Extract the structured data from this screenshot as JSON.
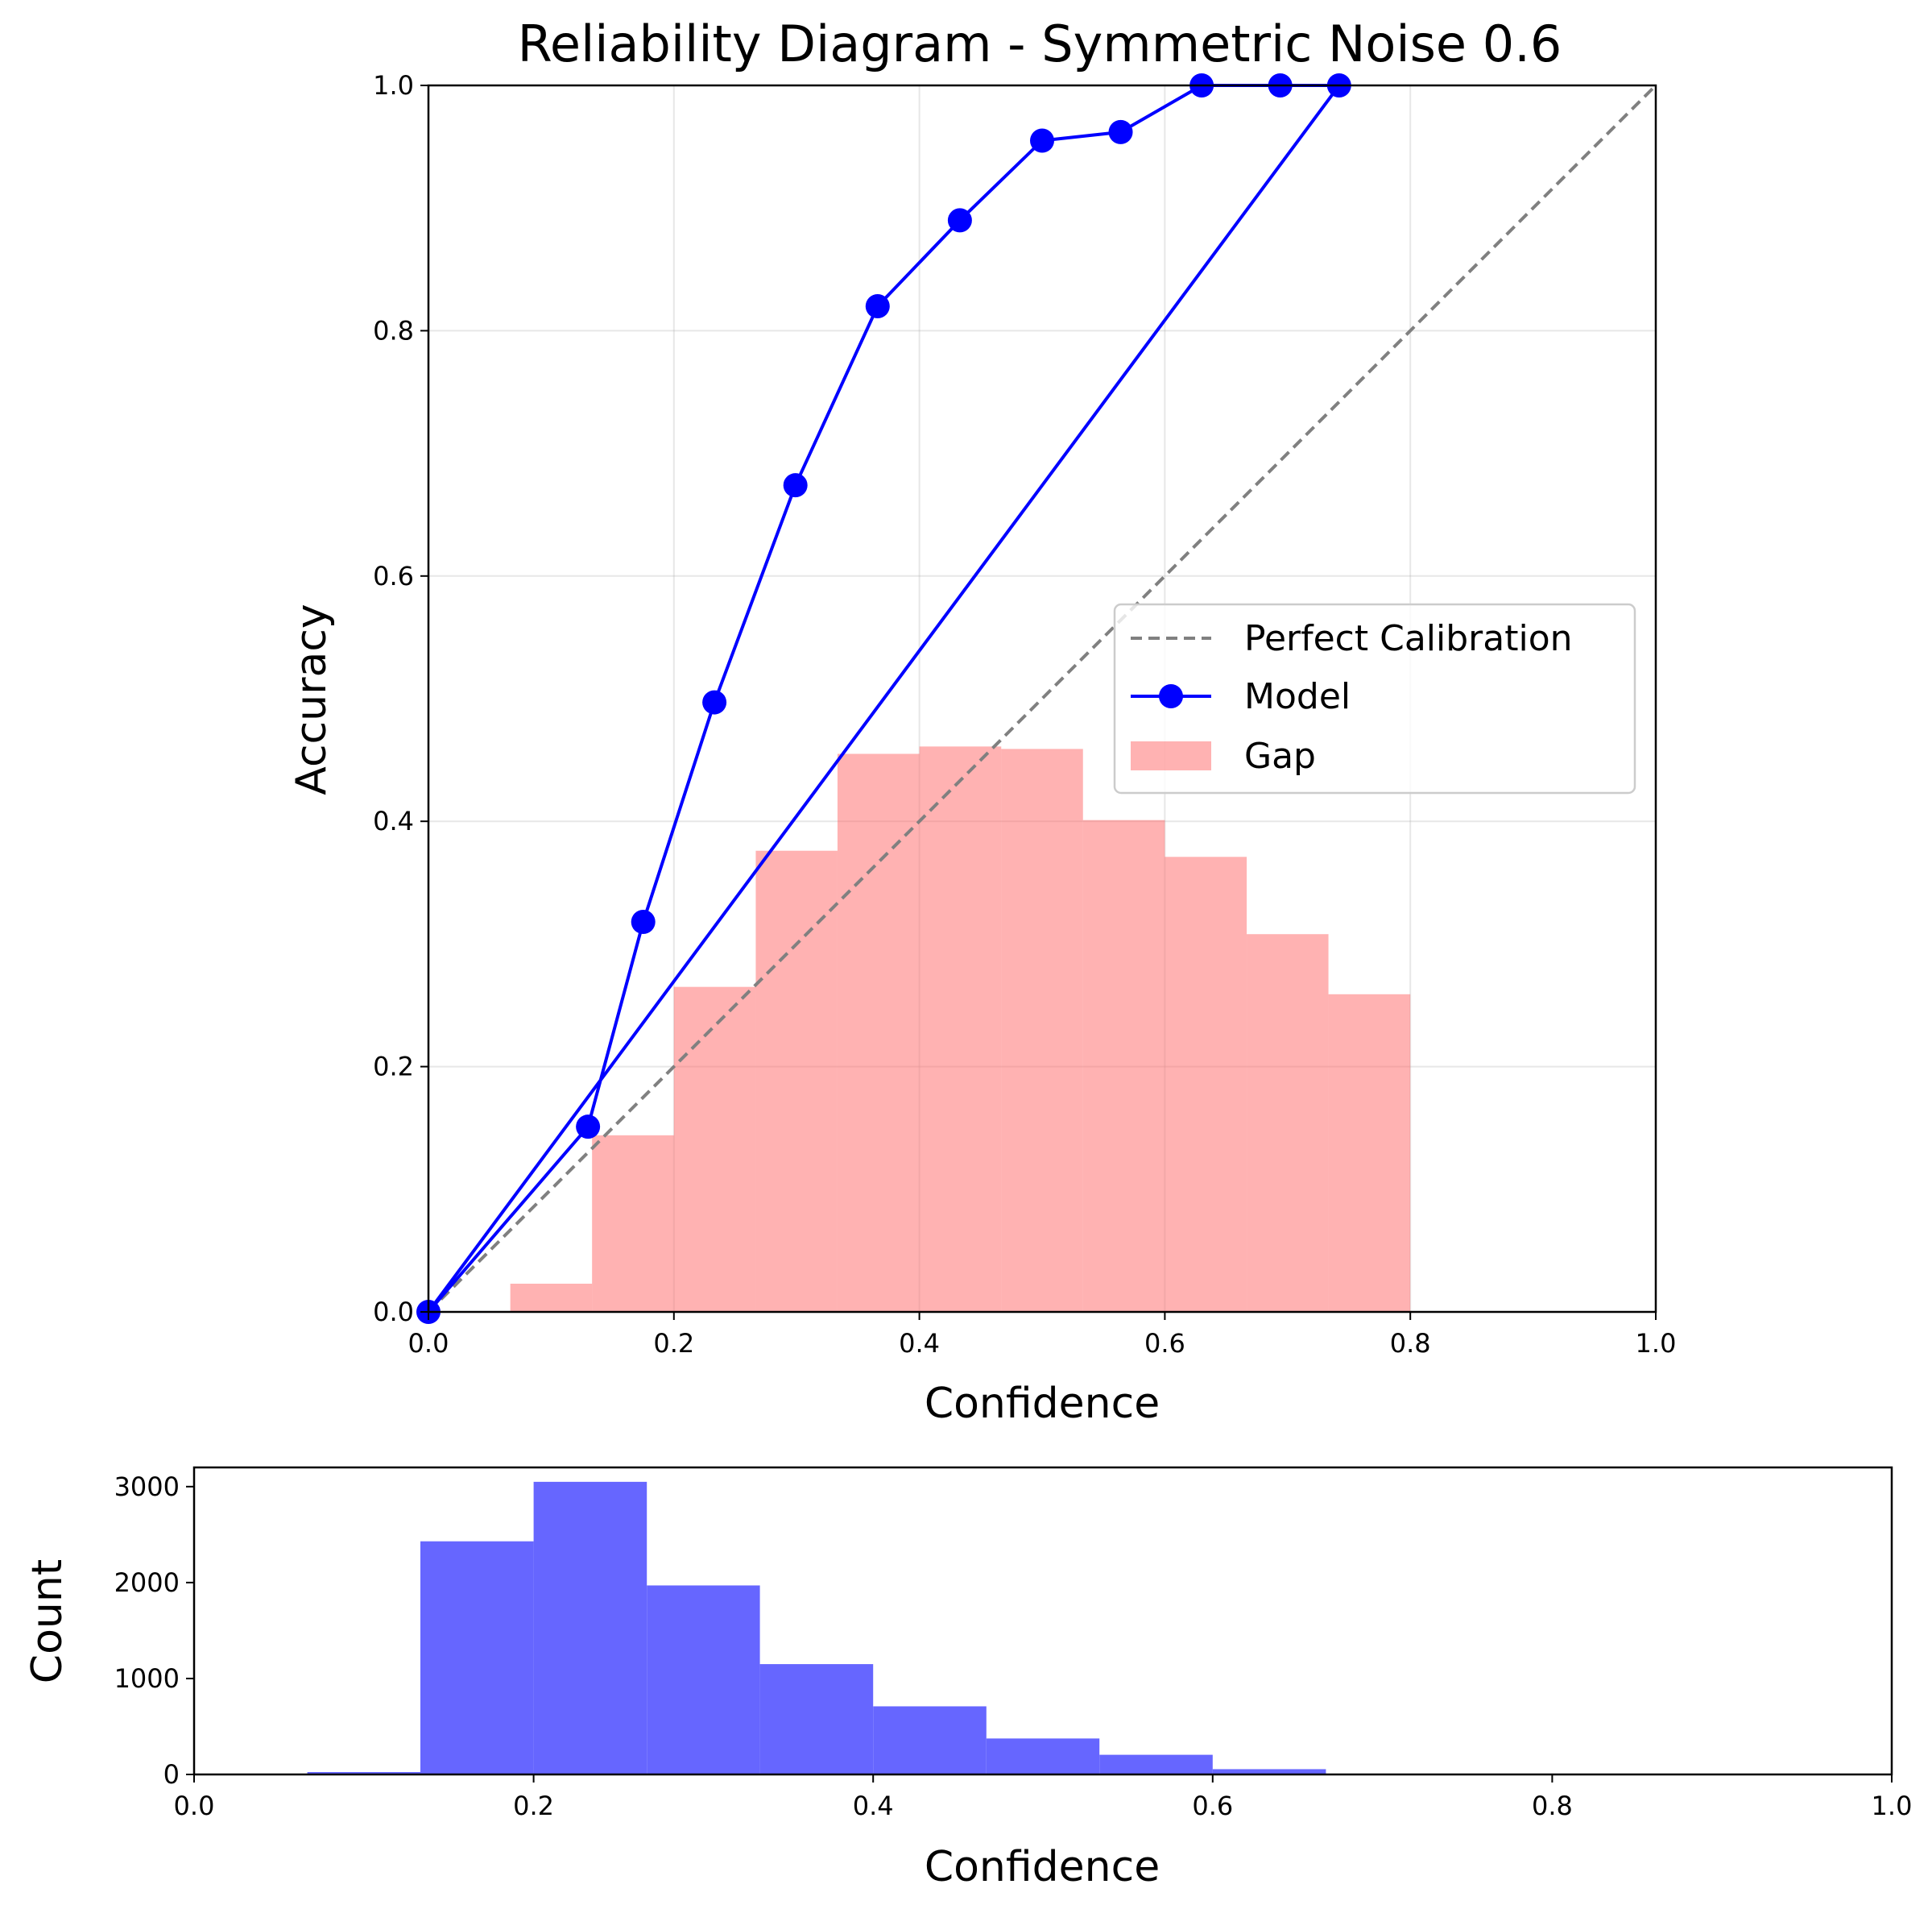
{
  "chart_data": [
    {
      "type": "line",
      "title": "Reliability Diagram - Symmetric Noise 0.6",
      "xlabel": "Confidence",
      "ylabel": "Accuracy",
      "xlim": [
        0,
        1
      ],
      "ylim": [
        0,
        1
      ],
      "xticks": [
        "0.0",
        "0.2",
        "0.4",
        "0.6",
        "0.8",
        "1.0"
      ],
      "yticks": [
        "0.0",
        "0.2",
        "0.4",
        "0.6",
        "0.8",
        "1.0"
      ],
      "grid": true,
      "legend_position": "center-right",
      "legend": [
        "Perfect Calibration",
        "Model",
        "Gap"
      ],
      "perfect_calibration": {
        "name": "Perfect Calibration",
        "x": [
          0,
          1
        ],
        "y": [
          0,
          1
        ],
        "color": "#808080",
        "style": "dashed"
      },
      "model": {
        "name": "Model",
        "color": "#0000ff",
        "points": [
          {
            "x": 0.0,
            "y": 0.0
          },
          {
            "x": 0.13,
            "y": 0.151
          },
          {
            "x": 0.175,
            "y": 0.318
          },
          {
            "x": 0.233,
            "y": 0.497
          },
          {
            "x": 0.299,
            "y": 0.674
          },
          {
            "x": 0.366,
            "y": 0.82
          },
          {
            "x": 0.433,
            "y": 0.89
          },
          {
            "x": 0.5,
            "y": 0.955
          },
          {
            "x": 0.564,
            "y": 0.962
          },
          {
            "x": 0.63,
            "y": 1.0
          },
          {
            "x": 0.694,
            "y": 1.0
          },
          {
            "x": 0.742,
            "y": 1.0
          }
        ],
        "closing_segment": {
          "from": [
            0.742,
            1.0
          ],
          "to": [
            0.0,
            0.0
          ]
        }
      },
      "gap": {
        "name": "Gap",
        "color": "#ff6666",
        "opacity": 0.5,
        "bins": [
          {
            "x0": 0.0667,
            "x1": 0.1333,
            "value": 0.023
          },
          {
            "x0": 0.1333,
            "x1": 0.2,
            "value": 0.144
          },
          {
            "x0": 0.2,
            "x1": 0.2667,
            "value": 0.265
          },
          {
            "x0": 0.2667,
            "x1": 0.3333,
            "value": 0.376
          },
          {
            "x0": 0.3333,
            "x1": 0.4,
            "value": 0.455
          },
          {
            "x0": 0.4,
            "x1": 0.4667,
            "value": 0.461
          },
          {
            "x0": 0.4667,
            "x1": 0.5333,
            "value": 0.459
          },
          {
            "x0": 0.5333,
            "x1": 0.6,
            "value": 0.401
          },
          {
            "x0": 0.6,
            "x1": 0.6667,
            "value": 0.371
          },
          {
            "x0": 0.6667,
            "x1": 0.7333,
            "value": 0.308
          },
          {
            "x0": 0.7333,
            "x1": 0.8,
            "value": 0.259
          }
        ]
      }
    },
    {
      "type": "bar",
      "title": "",
      "xlabel": "Confidence",
      "ylabel": "Count",
      "xlim": [
        0,
        1
      ],
      "ylim": [
        0,
        3200
      ],
      "xticks": [
        "0.0",
        "0.2",
        "0.4",
        "0.6",
        "0.8",
        "1.0"
      ],
      "yticks": [
        "0",
        "1000",
        "2000",
        "3000"
      ],
      "grid": false,
      "color": "#6666ff",
      "bins": [
        {
          "x0": 0.0667,
          "x1": 0.1333,
          "value": 25
        },
        {
          "x0": 0.1333,
          "x1": 0.2,
          "value": 2430
        },
        {
          "x0": 0.2,
          "x1": 0.2667,
          "value": 3050
        },
        {
          "x0": 0.2667,
          "x1": 0.3333,
          "value": 1970
        },
        {
          "x0": 0.3333,
          "x1": 0.4,
          "value": 1150
        },
        {
          "x0": 0.4,
          "x1": 0.4667,
          "value": 710
        },
        {
          "x0": 0.4667,
          "x1": 0.5333,
          "value": 375
        },
        {
          "x0": 0.5333,
          "x1": 0.6,
          "value": 205
        },
        {
          "x0": 0.6,
          "x1": 0.6667,
          "value": 55
        }
      ]
    }
  ]
}
